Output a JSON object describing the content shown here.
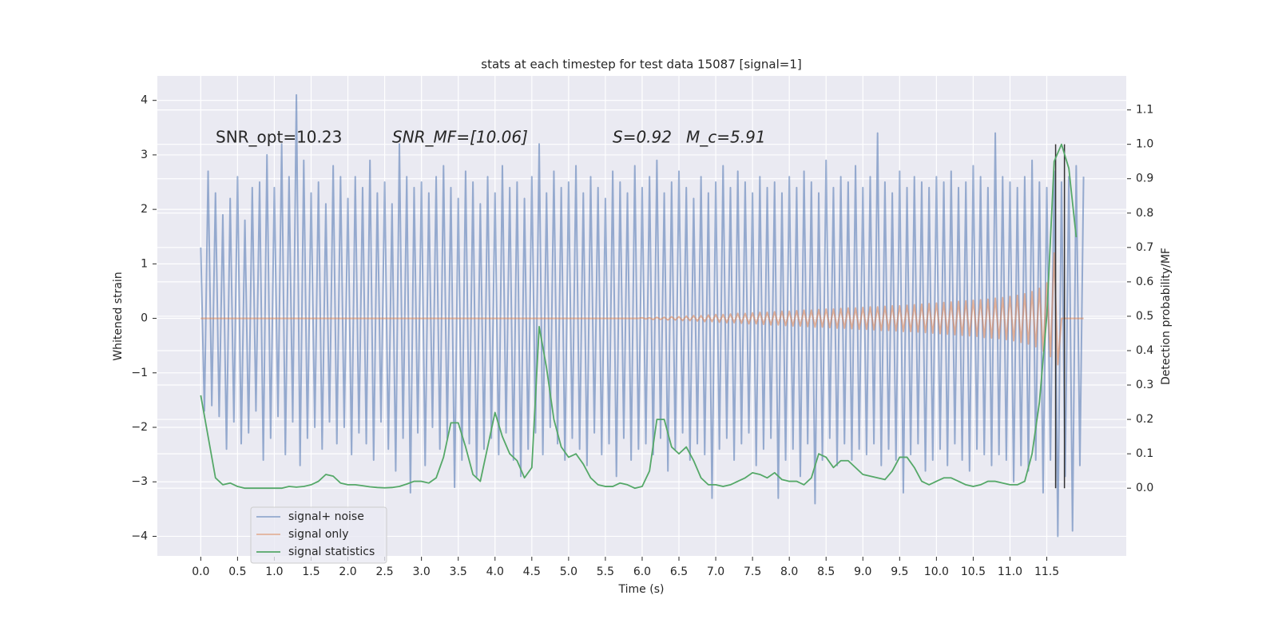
{
  "chart_data": {
    "type": "line",
    "title": "stats at each timestep for test data 15087 [signal=1]",
    "x_label": "Time (s)",
    "y_label": "Whitened strain",
    "y2_label": "Detection probability/MF",
    "annotations": [
      "SNR_opt=10.23",
      "SNR_MF=[10.06]",
      "S=0.92",
      "M_c=5.91"
    ],
    "grid": true,
    "legend": "lower left",
    "xlim": [
      -0.59,
      12.58
    ],
    "ylim": [
      -4.36,
      4.45
    ],
    "y2lim": [
      -0.197,
      1.199
    ],
    "xticks": [
      {
        "value": 0,
        "label": "0.0"
      },
      0.5,
      {
        "value": 1,
        "label": "1.0"
      },
      1.5,
      {
        "value": 2,
        "label": "2.0"
      },
      2.5,
      {
        "value": 3,
        "label": "3.0"
      },
      3.5,
      {
        "value": 4,
        "label": "4.0"
      },
      4.5,
      {
        "value": 5,
        "label": "5.0"
      },
      5.5,
      {
        "value": 6,
        "label": "6.0"
      },
      6.5,
      {
        "value": 7,
        "label": "7.0"
      },
      7.5,
      {
        "value": 8,
        "label": "8.0"
      },
      8.5,
      {
        "value": 9,
        "label": "9.0"
      },
      9.5,
      {
        "value": 10,
        "label": "10.0"
      },
      10.5,
      {
        "value": 11,
        "label": "11.0"
      },
      11.5
    ],
    "yticks": [
      {
        "value": -4,
        "label": "−4"
      },
      {
        "value": -3,
        "label": "−3"
      },
      {
        "value": -2,
        "label": "−2"
      },
      {
        "value": -1,
        "label": "−1"
      },
      0,
      1,
      2,
      3,
      4
    ],
    "y2ticks": [
      {
        "value": 0,
        "label": "0.0"
      },
      0.1,
      0.2,
      0.3,
      0.4,
      0.5,
      0.6,
      0.7,
      0.8,
      0.9,
      {
        "value": 1,
        "label": "1.0"
      },
      1.1
    ],
    "vlines": [
      11.62,
      11.74
    ],
    "vline_color": "#333333",
    "x": [
      0,
      0.05,
      0.1,
      0.15,
      0.2,
      0.25,
      0.3,
      0.35,
      0.4,
      0.45,
      0.5,
      0.55,
      0.6,
      0.65,
      0.7,
      0.75,
      0.8,
      0.85,
      0.9,
      0.95,
      1,
      1.05,
      1.1,
      1.15,
      1.2,
      1.25,
      1.3,
      1.35,
      1.4,
      1.45,
      1.5,
      1.55,
      1.6,
      1.65,
      1.7,
      1.75,
      1.8,
      1.85,
      1.9,
      1.95,
      2,
      2.05,
      2.1,
      2.15,
      2.2,
      2.25,
      2.3,
      2.35,
      2.4,
      2.45,
      2.5,
      2.55,
      2.6,
      2.65,
      2.7,
      2.75,
      2.8,
      2.85,
      2.9,
      2.95,
      3,
      3.05,
      3.1,
      3.15,
      3.2,
      3.25,
      3.3,
      3.35,
      3.4,
      3.45,
      3.5,
      3.55,
      3.6,
      3.65,
      3.7,
      3.75,
      3.8,
      3.85,
      3.9,
      3.95,
      4,
      4.05,
      4.1,
      4.15,
      4.2,
      4.25,
      4.3,
      4.35,
      4.4,
      4.45,
      4.5,
      4.55,
      4.6,
      4.65,
      4.7,
      4.75,
      4.8,
      4.85,
      4.9,
      4.95,
      5,
      5.05,
      5.1,
      5.15,
      5.2,
      5.25,
      5.3,
      5.35,
      5.4,
      5.45,
      5.5,
      5.55,
      5.6,
      5.65,
      5.7,
      5.75,
      5.8,
      5.85,
      5.9,
      5.95,
      6,
      6.05,
      6.1,
      6.15,
      6.2,
      6.25,
      6.3,
      6.35,
      6.4,
      6.45,
      6.5,
      6.55,
      6.6,
      6.65,
      6.7,
      6.75,
      6.8,
      6.85,
      6.9,
      6.95,
      7,
      7.05,
      7.1,
      7.15,
      7.2,
      7.25,
      7.3,
      7.35,
      7.4,
      7.45,
      7.5,
      7.55,
      7.6,
      7.65,
      7.7,
      7.75,
      7.8,
      7.85,
      7.9,
      7.95,
      8,
      8.05,
      8.1,
      8.15,
      8.2,
      8.25,
      8.3,
      8.35,
      8.4,
      8.45,
      8.5,
      8.55,
      8.6,
      8.65,
      8.7,
      8.75,
      8.8,
      8.85,
      8.9,
      8.95,
      9,
      9.05,
      9.1,
      9.15,
      9.2,
      9.25,
      9.3,
      9.35,
      9.4,
      9.45,
      9.5,
      9.55,
      9.6,
      9.65,
      9.7,
      9.75,
      9.8,
      9.85,
      9.9,
      9.95,
      10,
      10.05,
      10.1,
      10.15,
      10.2,
      10.25,
      10.3,
      10.35,
      10.4,
      10.45,
      10.5,
      10.55,
      10.6,
      10.65,
      10.7,
      10.75,
      10.8,
      10.85,
      10.9,
      10.95,
      11,
      11.05,
      11.1,
      11.15,
      11.2,
      11.25,
      11.3,
      11.35,
      11.4,
      11.45,
      11.5,
      11.55,
      11.6,
      11.65,
      11.7,
      11.75,
      11.8,
      11.85,
      11.9,
      11.95,
      12
    ],
    "series": [
      {
        "name": "signal+ noise",
        "color": "#4c72b0",
        "values": [
          1.3,
          -1.7,
          2.7,
          -1.6,
          2.3,
          -1.8,
          1.9,
          -2.4,
          2.2,
          -1.9,
          2.6,
          -2.3,
          1.8,
          -2.1,
          2.4,
          -1.7,
          2.5,
          -2.6,
          3.0,
          -2.2,
          2.4,
          -1.8,
          3.2,
          -2.5,
          2.6,
          -1.9,
          4.1,
          -2.7,
          2.9,
          -2.2,
          2.3,
          -2.0,
          2.5,
          -2.4,
          2.1,
          -1.9,
          2.8,
          -2.3,
          2.6,
          -2.0,
          2.2,
          -2.5,
          2.6,
          -2.1,
          2.4,
          -2.3,
          2.9,
          -2.6,
          2.3,
          -1.9,
          2.5,
          -2.4,
          2.1,
          -2.8,
          3.2,
          -2.2,
          2.6,
          -3.2,
          2.4,
          -2.1,
          2.5,
          -2.7,
          2.3,
          -2.0,
          2.6,
          -2.4,
          2.8,
          -2.2,
          2.4,
          -3.1,
          2.2,
          -2.6,
          2.7,
          -2.3,
          2.5,
          -2.9,
          2.1,
          -2.4,
          2.6,
          -2.2,
          2.3,
          -2.5,
          2.8,
          -2.1,
          2.4,
          -2.6,
          2.5,
          -2.9,
          2.2,
          -2.4,
          2.6,
          -2.1,
          3.2,
          -2.5,
          2.3,
          -2.0,
          2.7,
          -2.3,
          2.4,
          -2.6,
          2.5,
          -2.2,
          2.8,
          -2.4,
          2.3,
          -2.7,
          2.6,
          -2.1,
          2.4,
          -2.5,
          2.2,
          -2.3,
          2.7,
          -2.9,
          2.5,
          -2.2,
          2.3,
          -2.6,
          2.8,
          -2.4,
          2.4,
          -2.3,
          2.6,
          -2.5,
          2.9,
          -2.2,
          2.3,
          -2.8,
          2.5,
          -2.4,
          2.7,
          -2.1,
          2.4,
          -2.6,
          2.2,
          -2.3,
          2.6,
          -2.5,
          2.3,
          -3.3,
          2.5,
          -2.4,
          2.8,
          -2.2,
          2.4,
          -2.6,
          2.7,
          -2.3,
          2.5,
          -2.1,
          2.3,
          -2.7,
          2.6,
          -2.4,
          2.4,
          -2.2,
          2.5,
          -3.3,
          2.3,
          -2.6,
          2.6,
          -2.4,
          2.4,
          -2.9,
          2.7,
          -2.3,
          2.5,
          -3.4,
          2.3,
          -2.6,
          2.9,
          -2.2,
          2.4,
          -2.7,
          2.6,
          -2.3,
          2.5,
          -2.6,
          2.8,
          -2.4,
          2.4,
          -2.5,
          2.6,
          -2.3,
          3.4,
          -2.7,
          2.5,
          -2.4,
          2.3,
          -2.6,
          2.7,
          -3.2,
          2.4,
          -2.5,
          2.6,
          -2.3,
          2.5,
          -2.8,
          2.4,
          -2.6,
          2.6,
          -2.4,
          2.5,
          -2.7,
          2.7,
          -2.3,
          2.4,
          -2.6,
          2.5,
          -2.8,
          2.8,
          -2.4,
          2.6,
          -2.5,
          2.4,
          -2.7,
          3.4,
          -2.5,
          2.6,
          -2.6,
          2.5,
          -3.0,
          2.4,
          -2.7,
          2.6,
          -2.8,
          2.9,
          -2.6,
          2.5,
          -3.2,
          2.4,
          -2.6,
          2.7,
          -4.0,
          2.5,
          -2.9,
          2.6,
          -3.9,
          2.8,
          -2.7,
          2.6
        ]
      },
      {
        "name": "signal only",
        "color": "#dd8452",
        "values": [
          0,
          0,
          0,
          0,
          0,
          0,
          0,
          0,
          0,
          0,
          0,
          0,
          0,
          0,
          0,
          0,
          0,
          0,
          0,
          0,
          0,
          0,
          0,
          0,
          0,
          0,
          0,
          0,
          0,
          0,
          0,
          0,
          0,
          0,
          0,
          0,
          0,
          0,
          0,
          0,
          0,
          0,
          0,
          0,
          0,
          0,
          0,
          0,
          0,
          0,
          0,
          0,
          0,
          0,
          0,
          0,
          0,
          0,
          0,
          0,
          0,
          0,
          0,
          0,
          0,
          0,
          0,
          0,
          0,
          0,
          0,
          0,
          0,
          0,
          0,
          0,
          0,
          0,
          0,
          0,
          0,
          0,
          0,
          0,
          0,
          0,
          0,
          0,
          0,
          0,
          0,
          0,
          0,
          0,
          0,
          0,
          0,
          0,
          0,
          0,
          0,
          0,
          0,
          0,
          0,
          0,
          0,
          0,
          0,
          0,
          0,
          0,
          0,
          0,
          0,
          0,
          0,
          0,
          0,
          0,
          0.01,
          -0.01,
          0.01,
          -0.02,
          0.02,
          -0.02,
          0.02,
          -0.03,
          0.03,
          -0.03,
          0.03,
          -0.04,
          0.04,
          -0.04,
          0.05,
          -0.05,
          0.05,
          -0.06,
          0.06,
          -0.06,
          0.07,
          -0.07,
          0.07,
          -0.08,
          0.08,
          -0.08,
          0.09,
          -0.09,
          0.09,
          -0.1,
          0.1,
          -0.1,
          0.11,
          -0.11,
          0.11,
          -0.12,
          0.12,
          -0.12,
          0.13,
          -0.13,
          0.13,
          -0.14,
          0.14,
          -0.14,
          0.15,
          -0.15,
          0.15,
          -0.16,
          0.16,
          -0.16,
          0.17,
          -0.17,
          0.17,
          -0.18,
          0.18,
          -0.18,
          0.19,
          -0.19,
          0.19,
          -0.2,
          0.2,
          -0.2,
          0.21,
          -0.21,
          0.21,
          -0.22,
          0.22,
          -0.22,
          0.23,
          -0.23,
          0.23,
          -0.24,
          0.24,
          -0.24,
          0.25,
          -0.25,
          0.26,
          -0.26,
          0.27,
          -0.27,
          0.28,
          -0.28,
          0.29,
          -0.29,
          0.3,
          -0.3,
          0.31,
          -0.31,
          0.32,
          -0.32,
          0.33,
          -0.33,
          0.34,
          -0.35,
          0.35,
          -0.36,
          0.37,
          -0.37,
          0.38,
          -0.39,
          0.4,
          -0.41,
          0.42,
          -0.44,
          0.45,
          -0.47,
          0.49,
          -0.52,
          0.55,
          -0.6,
          0.65,
          -0.7,
          1.2,
          -0.85,
          0,
          0,
          0,
          0,
          0,
          0,
          0
        ]
      },
      {
        "name": "signal statistics",
        "color": "#55a868",
        "axis": "y2",
        "x": [
          0,
          0.1,
          0.2,
          0.3,
          0.4,
          0.5,
          0.6,
          0.7,
          0.8,
          0.9,
          1,
          1.1,
          1.2,
          1.3,
          1.4,
          1.5,
          1.6,
          1.7,
          1.8,
          1.9,
          2,
          2.1,
          2.2,
          2.3,
          2.4,
          2.5,
          2.6,
          2.7,
          2.8,
          2.9,
          3,
          3.1,
          3.2,
          3.3,
          3.4,
          3.5,
          3.6,
          3.7,
          3.8,
          3.9,
          4,
          4.1,
          4.2,
          4.3,
          4.4,
          4.5,
          4.6,
          4.7,
          4.8,
          4.9,
          5,
          5.1,
          5.2,
          5.3,
          5.4,
          5.5,
          5.6,
          5.7,
          5.8,
          5.9,
          6,
          6.1,
          6.2,
          6.3,
          6.4,
          6.5,
          6.6,
          6.7,
          6.8,
          6.9,
          7,
          7.1,
          7.2,
          7.3,
          7.4,
          7.5,
          7.6,
          7.7,
          7.8,
          7.9,
          8,
          8.1,
          8.2,
          8.3,
          8.4,
          8.5,
          8.6,
          8.7,
          8.8,
          8.9,
          9,
          9.1,
          9.2,
          9.3,
          9.4,
          9.5,
          9.6,
          9.7,
          9.8,
          9.9,
          10,
          10.1,
          10.2,
          10.3,
          10.4,
          10.5,
          10.6,
          10.7,
          10.8,
          10.9,
          11,
          11.1,
          11.2,
          11.3,
          11.4,
          11.5,
          11.6,
          11.7,
          11.8,
          11.9
        ],
        "values": [
          0.27,
          0.15,
          0.03,
          0.01,
          0.015,
          0.005,
          0,
          0,
          0,
          0,
          0,
          0,
          0.005,
          0.003,
          0.005,
          0.01,
          0.02,
          0.04,
          0.035,
          0.015,
          0.01,
          0.01,
          0.007,
          0.004,
          0.002,
          0.001,
          0.002,
          0.005,
          0.012,
          0.02,
          0.02,
          0.015,
          0.03,
          0.09,
          0.19,
          0.19,
          0.12,
          0.04,
          0.02,
          0.12,
          0.22,
          0.15,
          0.1,
          0.08,
          0.03,
          0.06,
          0.47,
          0.35,
          0.2,
          0.12,
          0.09,
          0.1,
          0.07,
          0.03,
          0.01,
          0.005,
          0.005,
          0.015,
          0.01,
          0,
          0.005,
          0.05,
          0.2,
          0.2,
          0.12,
          0.1,
          0.12,
          0.08,
          0.03,
          0.01,
          0.01,
          0.005,
          0.01,
          0.02,
          0.03,
          0.045,
          0.04,
          0.03,
          0.045,
          0.025,
          0.02,
          0.02,
          0.01,
          0.03,
          0.1,
          0.09,
          0.06,
          0.08,
          0.08,
          0.06,
          0.04,
          0.035,
          0.03,
          0.025,
          0.05,
          0.09,
          0.09,
          0.06,
          0.02,
          0.01,
          0.02,
          0.03,
          0.03,
          0.02,
          0.01,
          0.005,
          0.01,
          0.02,
          0.02,
          0.015,
          0.01,
          0.01,
          0.02,
          0.1,
          0.25,
          0.5,
          0.95,
          1.0,
          0.93,
          0.73
        ]
      }
    ]
  }
}
